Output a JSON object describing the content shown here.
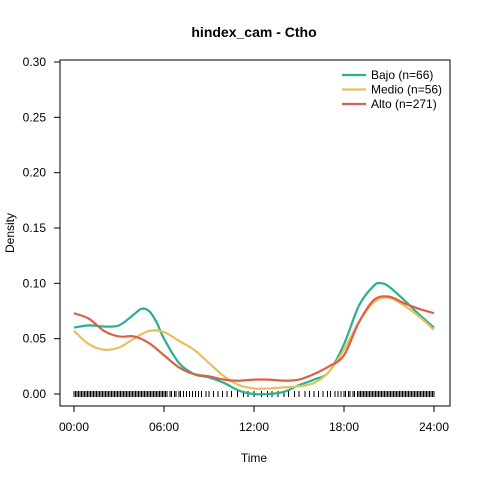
{
  "chart_data": {
    "type": "line",
    "title": "hindex_cam - Ctho",
    "xlabel": "Time",
    "ylabel": "Density",
    "xlim": [
      0,
      24
    ],
    "ylim": [
      0,
      0.3
    ],
    "x_ticks": [
      0,
      6,
      12,
      18,
      24
    ],
    "x_tick_labels": [
      "00:00",
      "06:00",
      "12:00",
      "18:00",
      "24:00"
    ],
    "y_ticks": [
      0.0,
      0.05,
      0.1,
      0.15,
      0.2,
      0.25,
      0.3
    ],
    "y_tick_labels": [
      "0.00",
      "0.05",
      "0.10",
      "0.15",
      "0.20",
      "0.25",
      "0.30"
    ],
    "legend_position": "top-right",
    "series": [
      {
        "name": "Bajo (n=66)",
        "color": "#2ab08a",
        "x": [
          0,
          1,
          2,
          3,
          4,
          4.5,
          5,
          5.5,
          6,
          7,
          8,
          9,
          10,
          11,
          12,
          13,
          14,
          15,
          16,
          17,
          18,
          19,
          20,
          20.5,
          21,
          22,
          23,
          24
        ],
        "y": [
          0.06,
          0.062,
          0.061,
          0.062,
          0.072,
          0.077,
          0.075,
          0.065,
          0.05,
          0.028,
          0.018,
          0.015,
          0.01,
          0.003,
          0.0,
          0.0,
          0.002,
          0.008,
          0.013,
          0.02,
          0.045,
          0.08,
          0.098,
          0.1,
          0.097,
          0.085,
          0.072,
          0.06
        ]
      },
      {
        "name": "Medio (n=56)",
        "color": "#e6c060",
        "x": [
          0,
          1,
          2,
          3,
          4,
          5,
          6,
          7,
          8,
          9,
          10,
          11,
          12,
          13,
          14,
          15,
          16,
          17,
          18,
          19,
          20,
          21,
          22,
          23,
          24
        ],
        "y": [
          0.057,
          0.045,
          0.04,
          0.042,
          0.05,
          0.057,
          0.056,
          0.048,
          0.04,
          0.028,
          0.016,
          0.008,
          0.005,
          0.005,
          0.006,
          0.007,
          0.01,
          0.02,
          0.04,
          0.065,
          0.083,
          0.087,
          0.08,
          0.07,
          0.058
        ]
      },
      {
        "name": "Alto (n=271)",
        "color": "#d9604a",
        "x": [
          0,
          1,
          2,
          3,
          4,
          5,
          6,
          7,
          8,
          9,
          10,
          11,
          12,
          13,
          14,
          15,
          16,
          17,
          18,
          19,
          20,
          21,
          22,
          23,
          24
        ],
        "y": [
          0.073,
          0.068,
          0.057,
          0.052,
          0.052,
          0.046,
          0.035,
          0.024,
          0.018,
          0.016,
          0.013,
          0.012,
          0.013,
          0.013,
          0.012,
          0.013,
          0.018,
          0.025,
          0.035,
          0.065,
          0.085,
          0.088,
          0.082,
          0.077,
          0.073
        ]
      }
    ],
    "rug": {
      "y": 0.0,
      "x": [
        0.0,
        0.1,
        0.2,
        0.3,
        0.4,
        0.5,
        0.6,
        0.7,
        0.8,
        0.9,
        1.0,
        1.1,
        1.2,
        1.3,
        1.4,
        1.5,
        1.6,
        1.7,
        1.8,
        1.9,
        2.0,
        2.1,
        2.2,
        2.3,
        2.4,
        2.5,
        2.6,
        2.7,
        2.8,
        2.9,
        3.0,
        3.1,
        3.2,
        3.3,
        3.4,
        3.5,
        3.6,
        3.7,
        3.8,
        3.9,
        4.0,
        4.1,
        4.2,
        4.3,
        4.4,
        4.5,
        4.6,
        4.7,
        4.8,
        4.9,
        5.0,
        5.1,
        5.2,
        5.3,
        5.4,
        5.5,
        5.6,
        5.7,
        5.8,
        5.9,
        6.0,
        6.1,
        6.2,
        6.4,
        6.5,
        6.7,
        6.8,
        7.0,
        7.1,
        7.3,
        7.5,
        7.7,
        7.9,
        8.1,
        8.3,
        8.5,
        8.8,
        9.0,
        9.3,
        9.6,
        9.9,
        10.2,
        10.5,
        10.9,
        11.3,
        11.6,
        12.0,
        12.5,
        12.9,
        13.2,
        13.6,
        14.0,
        14.3,
        14.7,
        15.0,
        15.4,
        15.7,
        16.0,
        16.3,
        16.6,
        16.9,
        17.1,
        17.4,
        17.6,
        17.8,
        18.0,
        18.1,
        18.3,
        18.4,
        18.6,
        18.7,
        18.9,
        19.0,
        19.1,
        19.2,
        19.3,
        19.4,
        19.5,
        19.6,
        19.7,
        19.8,
        19.9,
        20.0,
        20.1,
        20.2,
        20.3,
        20.4,
        20.5,
        20.6,
        20.7,
        20.8,
        20.9,
        21.0,
        21.1,
        21.2,
        21.3,
        21.4,
        21.5,
        21.6,
        21.7,
        21.8,
        21.9,
        22.0,
        22.1,
        22.2,
        22.3,
        22.4,
        22.5,
        22.6,
        22.7,
        22.8,
        22.9,
        23.0,
        23.1,
        23.2,
        23.3,
        23.4,
        23.5,
        23.6,
        23.7,
        23.8,
        23.9,
        24.0
      ]
    }
  }
}
